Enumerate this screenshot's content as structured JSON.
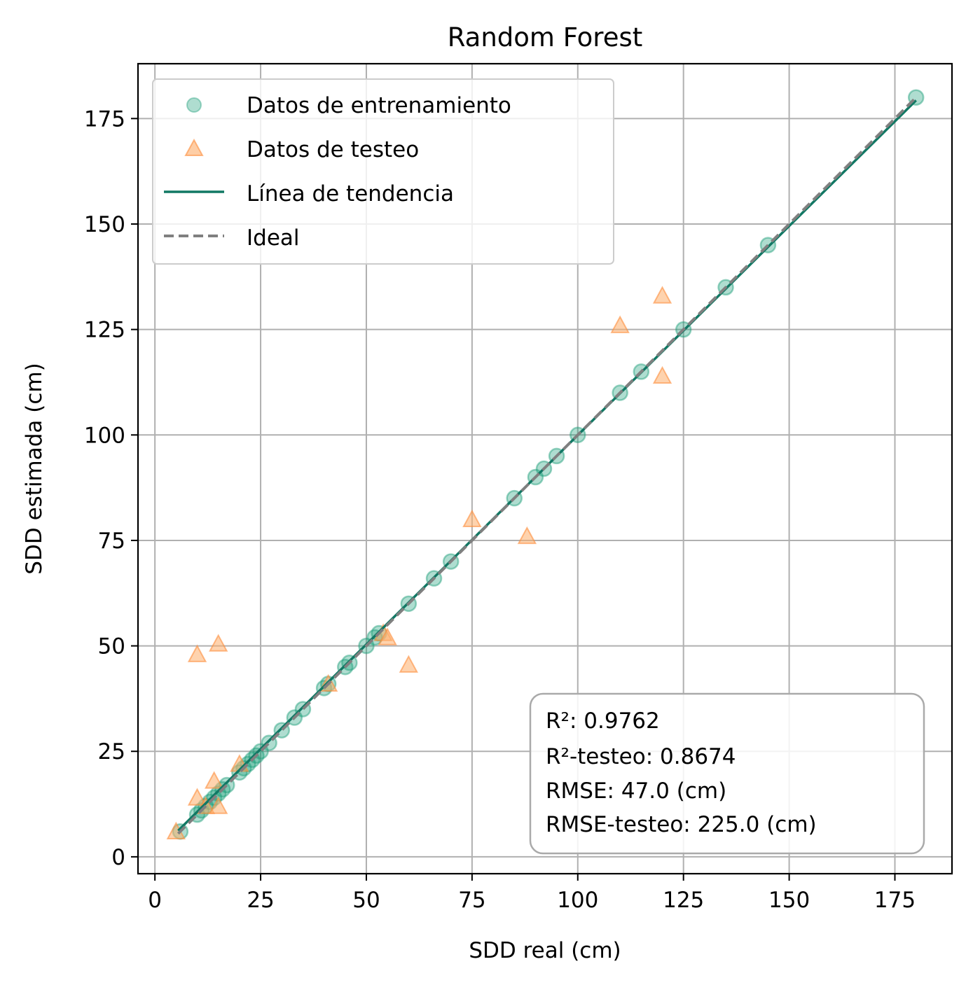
{
  "chart_data": {
    "type": "scatter",
    "title": "Random Forest",
    "xlabel": "SDD real (cm)",
    "ylabel": "SDD estimada (cm)",
    "xlim": [
      -4,
      188.5
    ],
    "ylim": [
      -4,
      188
    ],
    "xticks": [
      0,
      25,
      50,
      75,
      100,
      125,
      150,
      175
    ],
    "yticks": [
      0,
      25,
      50,
      75,
      100,
      125,
      150,
      175
    ],
    "grid": true,
    "legend_position": "upper-left",
    "colors": {
      "train": "#1b9e77",
      "test": "#fdae6b",
      "trend": "#117864",
      "ideal": "#808080"
    },
    "series": [
      {
        "name": "Datos de entrenamiento",
        "marker": "circle",
        "points": [
          [
            6,
            6
          ],
          [
            10,
            10
          ],
          [
            11,
            11
          ],
          [
            12,
            12
          ],
          [
            13,
            13
          ],
          [
            14,
            14
          ],
          [
            15,
            15
          ],
          [
            16,
            16
          ],
          [
            17,
            17
          ],
          [
            20,
            20
          ],
          [
            21,
            21
          ],
          [
            22,
            22
          ],
          [
            23,
            23
          ],
          [
            24,
            24
          ],
          [
            25,
            25
          ],
          [
            27,
            27
          ],
          [
            30,
            30
          ],
          [
            33,
            33
          ],
          [
            35,
            35
          ],
          [
            40,
            40
          ],
          [
            41,
            41
          ],
          [
            45,
            45
          ],
          [
            46,
            46
          ],
          [
            50,
            50
          ],
          [
            52,
            52
          ],
          [
            53,
            53
          ],
          [
            60,
            60
          ],
          [
            66,
            66
          ],
          [
            70,
            70
          ],
          [
            85,
            85
          ],
          [
            90,
            90
          ],
          [
            92,
            92
          ],
          [
            95,
            95
          ],
          [
            100,
            100
          ],
          [
            110,
            110
          ],
          [
            115,
            115
          ],
          [
            125,
            125
          ],
          [
            135,
            135
          ],
          [
            145,
            145
          ],
          [
            180,
            180
          ]
        ]
      },
      {
        "name": "Datos de testeo",
        "marker": "triangle",
        "points": [
          [
            5,
            6
          ],
          [
            10,
            14
          ],
          [
            10,
            48
          ],
          [
            12,
            12
          ],
          [
            14,
            18
          ],
          [
            15,
            12
          ],
          [
            15,
            50.5
          ],
          [
            20,
            22
          ],
          [
            41,
            41
          ],
          [
            54,
            53
          ],
          [
            55,
            52
          ],
          [
            60,
            45.5
          ],
          [
            75,
            80
          ],
          [
            88,
            76
          ],
          [
            110,
            126
          ],
          [
            120,
            133
          ],
          [
            120,
            114
          ]
        ]
      }
    ],
    "lines": [
      {
        "name": "Línea de tendencia",
        "style": "solid",
        "x": [
          5.5,
          180
        ],
        "y": [
          6.2,
          179.3
        ]
      },
      {
        "name": "Ideal",
        "style": "dashed",
        "x": [
          5.5,
          180
        ],
        "y": [
          5.5,
          180
        ]
      }
    ],
    "stats": [
      "R²: 0.9762",
      "R²-testeo: 0.8674",
      "RMSE: 47.0 (cm)",
      "RMSE-testeo: 225.0 (cm)"
    ]
  }
}
